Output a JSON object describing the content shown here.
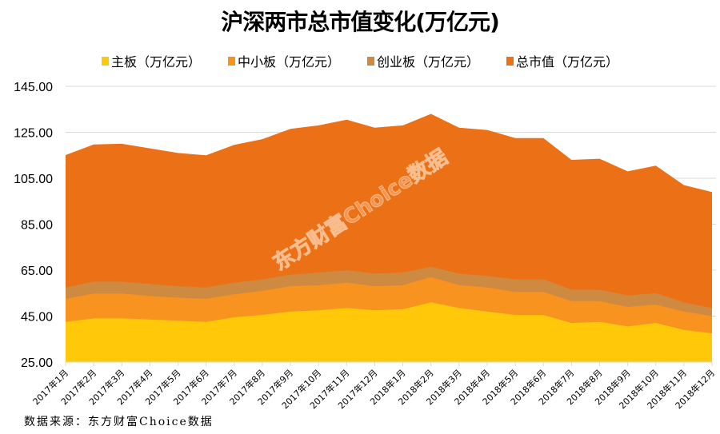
{
  "chart_data": {
    "type": "area",
    "title": "沪深两市总市值变化(万亿元)",
    "xlabel": "",
    "ylabel": "",
    "ylim": [
      25,
      145
    ],
    "yticks": [
      "25.00",
      "45.00",
      "65.00",
      "85.00",
      "105.00",
      "125.00",
      "145.00"
    ],
    "grid": true,
    "legend_position": "top",
    "categories": [
      "2017年1月",
      "2017年2月",
      "2017年3月",
      "2017年4月",
      "2017年5月",
      "2017年6月",
      "2017年7月",
      "2017年8月",
      "2017年9月",
      "2017年10月",
      "2017年11月",
      "2017年12月",
      "2018年1月",
      "2018年2月",
      "2018年3月",
      "2018年4月",
      "2018年5月",
      "2018年6月",
      "2018年7月",
      "2018年8月",
      "2018年9月",
      "2018年10月",
      "2018年11月",
      "2018年12月"
    ],
    "series": [
      {
        "name": "总市值（万亿元）",
        "color": "#EB7016",
        "values": [
          115.1,
          119.7,
          120.0,
          118.0,
          116.0,
          115.0,
          119.5,
          122.0,
          126.5,
          128.0,
          130.5,
          127.0,
          128.0,
          133.0,
          127.0,
          126.0,
          122.5,
          122.5,
          113.0,
          113.5,
          108.0,
          110.5,
          102.0,
          99.0
        ]
      },
      {
        "name": "创业板（万亿元）",
        "color": "#CD8A40",
        "values": [
          57.5,
          60.0,
          60.0,
          59.0,
          58.0,
          57.5,
          59.5,
          61.0,
          63.0,
          64.0,
          65.0,
          63.5,
          64.0,
          66.5,
          63.5,
          62.5,
          61.0,
          61.0,
          56.5,
          56.5,
          54.0,
          55.0,
          51.0,
          48.5
        ]
      },
      {
        "name": "中小板（万亿元）",
        "color": "#F7931E",
        "values": [
          52.5,
          54.8,
          54.8,
          53.8,
          53.0,
          52.5,
          54.5,
          56.0,
          58.0,
          58.5,
          59.5,
          58.0,
          58.5,
          62.0,
          58.5,
          57.5,
          55.5,
          55.5,
          51.5,
          51.5,
          49.0,
          50.0,
          47.0,
          45.0
        ]
      },
      {
        "name": "主板（万亿元）",
        "color": "#FFC90A",
        "values": [
          42.5,
          44.0,
          44.0,
          43.5,
          43.0,
          42.5,
          44.5,
          45.5,
          47.0,
          47.5,
          48.5,
          47.5,
          48.0,
          51.0,
          48.5,
          47.0,
          45.5,
          45.5,
          42.0,
          42.5,
          40.5,
          42.0,
          39.0,
          37.5
        ]
      }
    ],
    "legend": [
      "主板（万亿元）",
      "中小板（万亿元）",
      "创业板（万亿元）",
      "总市值（万亿元）"
    ],
    "legend_colors": [
      "#FFC90A",
      "#F7931E",
      "#CD8A40",
      "#EB7016"
    ],
    "watermark": "东方财富Choice数据"
  },
  "footer": {
    "source": "数据来源：东方财富Choice数据"
  }
}
